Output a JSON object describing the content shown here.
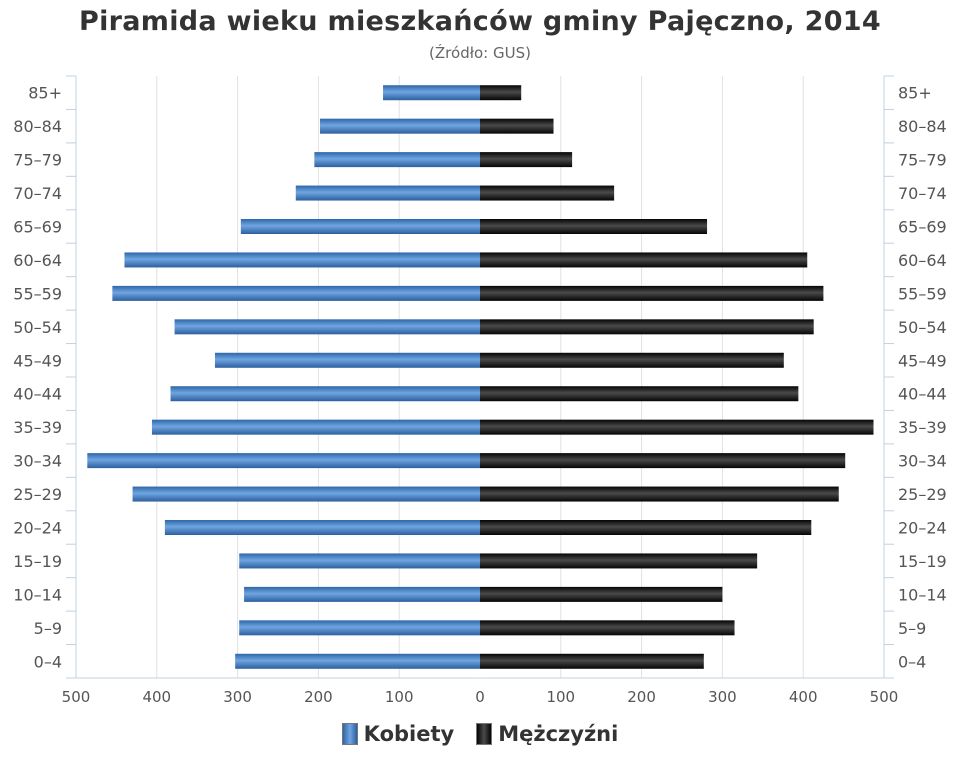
{
  "chart_data": {
    "type": "bar",
    "orientation": "horizontal-pyramid",
    "title": "Piramida wieku mieszkańców gminy Pajęczno, 2014",
    "subtitle": "(Źródło: GUS)",
    "categories": [
      "85+",
      "80–84",
      "75–79",
      "70–74",
      "65–69",
      "60–64",
      "55–59",
      "50–54",
      "45–49",
      "40–44",
      "35–39",
      "30–34",
      "25–29",
      "20–24",
      "15–19",
      "10–14",
      "5–9",
      "0–4"
    ],
    "series": [
      {
        "name": "Kobiety",
        "side": "left",
        "color": "#4f86c6",
        "values": [
          120,
          198,
          205,
          228,
          296,
          440,
          455,
          378,
          328,
          383,
          406,
          486,
          430,
          390,
          298,
          292,
          298,
          303
        ]
      },
      {
        "name": "Mężczyźni",
        "side": "right",
        "color": "#1a1a1a",
        "values": [
          51,
          91,
          114,
          166,
          281,
          405,
          425,
          413,
          376,
          394,
          487,
          452,
          444,
          410,
          343,
          300,
          315,
          277
        ]
      }
    ],
    "x_ticks": [
      "500",
      "400",
      "300",
      "200",
      "100",
      "0",
      "100",
      "200",
      "300",
      "400",
      "500"
    ],
    "xlim": [
      -500,
      500
    ],
    "grid": true,
    "legend_position": "bottom"
  }
}
